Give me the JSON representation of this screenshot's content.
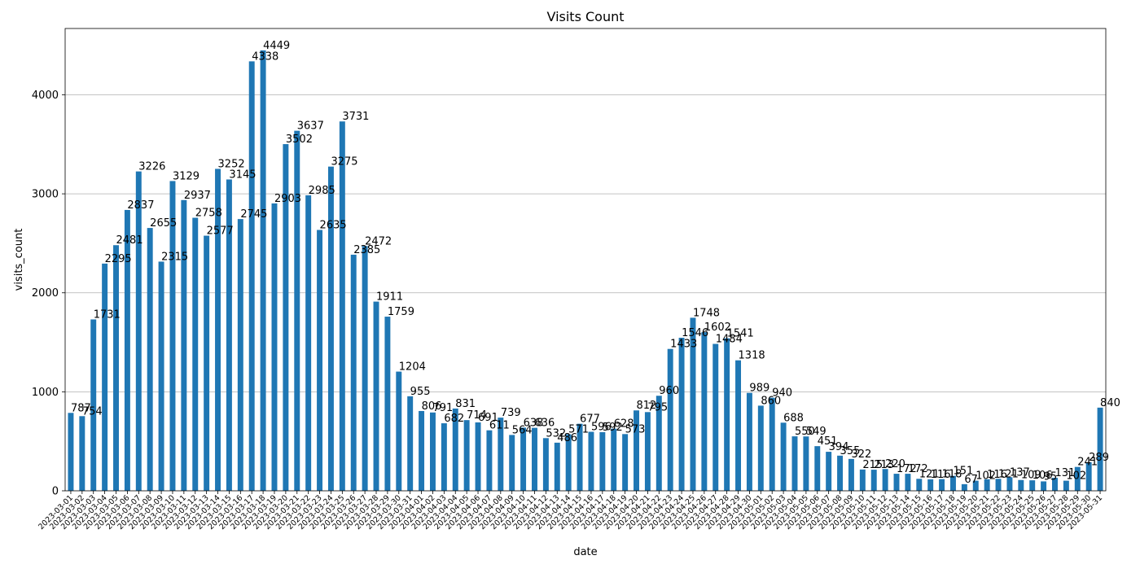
{
  "chart_data": {
    "type": "bar",
    "title": "Visits Count",
    "xlabel": "date",
    "ylabel": "visits_count",
    "ylim": [
      0,
      4670
    ],
    "yticks": [
      0,
      1000,
      2000,
      3000,
      4000
    ],
    "grid": "horizontal",
    "bar_color": "#1f77b4",
    "categories": [
      "2023-03-01",
      "2023-03-02",
      "2023-03-03",
      "2023-03-04",
      "2023-03-05",
      "2023-03-06",
      "2023-03-07",
      "2023-03-08",
      "2023-03-09",
      "2023-03-10",
      "2023-03-11",
      "2023-03-12",
      "2023-03-13",
      "2023-03-14",
      "2023-03-15",
      "2023-03-16",
      "2023-03-17",
      "2023-03-18",
      "2023-03-19",
      "2023-03-20",
      "2023-03-21",
      "2023-03-22",
      "2023-03-23",
      "2023-03-24",
      "2023-03-25",
      "2023-03-26",
      "2023-03-27",
      "2023-03-28",
      "2023-03-29",
      "2023-03-30",
      "2023-03-31",
      "2023-04-01",
      "2023-04-02",
      "2023-04-03",
      "2023-04-04",
      "2023-04-05",
      "2023-04-06",
      "2023-04-07",
      "2023-04-08",
      "2023-04-09",
      "2023-04-10",
      "2023-04-11",
      "2023-04-12",
      "2023-04-13",
      "2023-04-14",
      "2023-04-15",
      "2023-04-16",
      "2023-04-17",
      "2023-04-18",
      "2023-04-19",
      "2023-04-20",
      "2023-04-21",
      "2023-04-22",
      "2023-04-23",
      "2023-04-24",
      "2023-04-25",
      "2023-04-26",
      "2023-04-27",
      "2023-04-28",
      "2023-04-29",
      "2023-04-30",
      "2023-05-01",
      "2023-05-02",
      "2023-05-03",
      "2023-05-04",
      "2023-05-05",
      "2023-05-06",
      "2023-05-07",
      "2023-05-08",
      "2023-05-09",
      "2023-05-10",
      "2023-05-11",
      "2023-05-12",
      "2023-05-13",
      "2023-05-14",
      "2023-05-15",
      "2023-05-16",
      "2023-05-17",
      "2023-05-18",
      "2023-05-19",
      "2023-05-20",
      "2023-05-21",
      "2023-05-22",
      "2023-05-23",
      "2023-05-24",
      "2023-05-25",
      "2023-05-26",
      "2023-05-27",
      "2023-05-28",
      "2023-05-29",
      "2023-05-30",
      "2023-05-31"
    ],
    "values": [
      787,
      754,
      1731,
      2295,
      2481,
      2837,
      3226,
      2655,
      2315,
      3129,
      2937,
      2758,
      2577,
      3252,
      3145,
      2745,
      4338,
      4449,
      2903,
      3502,
      3637,
      2985,
      2635,
      3275,
      3731,
      2385,
      2472,
      1911,
      1759,
      1204,
      955,
      806,
      791,
      682,
      831,
      714,
      691,
      611,
      739,
      564,
      638,
      636,
      532,
      486,
      571,
      677,
      596,
      592,
      628,
      573,
      812,
      795,
      960,
      1433,
      1546,
      1748,
      1602,
      1484,
      1541,
      1318,
      989,
      860,
      940,
      688,
      550,
      549,
      451,
      394,
      355,
      322,
      215,
      213,
      220,
      172,
      172,
      121,
      116,
      118,
      151,
      67,
      102,
      116,
      121,
      137,
      109,
      106,
      95,
      131,
      102,
      241,
      289,
      840
    ]
  }
}
